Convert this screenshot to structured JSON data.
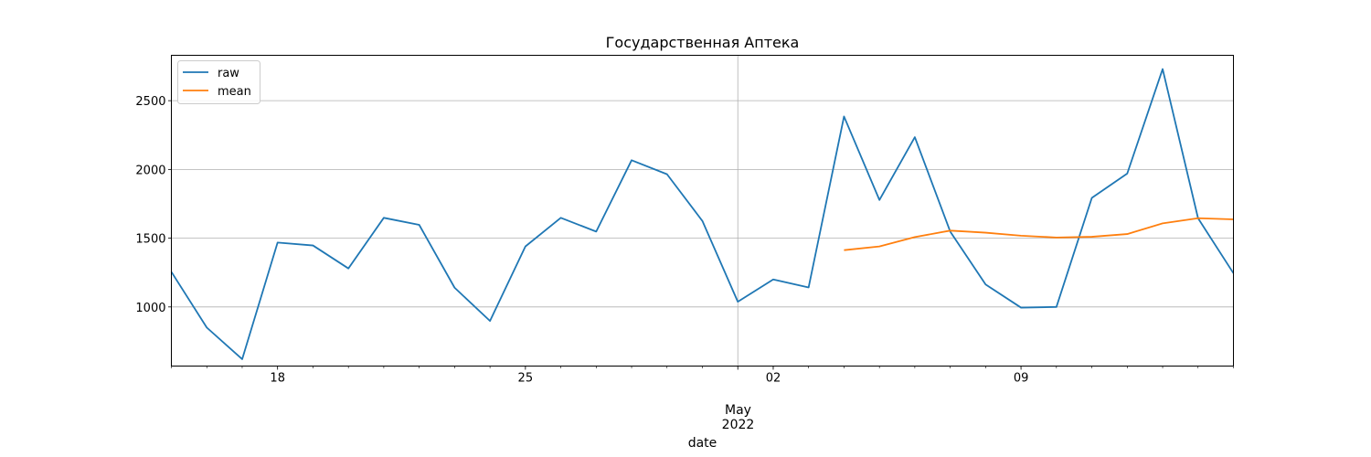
{
  "chart_data": {
    "type": "line",
    "title": "Государственная Аптека",
    "xlabel": "date",
    "ylabel": "",
    "x_month_label": "May",
    "x_year_label": "2022",
    "x_start": "2022-04-15",
    "x_end": "2022-05-15",
    "ylim": [
      570,
      2830
    ],
    "yticks": [
      1000,
      1500,
      2000,
      2500
    ],
    "xticks": [
      {
        "date": "2022-04-18",
        "label": "18"
      },
      {
        "date": "2022-04-25",
        "label": "25"
      },
      {
        "date": "2022-05-02",
        "label": "02"
      },
      {
        "date": "2022-05-09",
        "label": "09"
      }
    ],
    "grid": true,
    "legend_position": "upper-left",
    "series": [
      {
        "name": "raw",
        "color": "#1f77b4",
        "points": [
          [
            "2022-04-15",
            1255
          ],
          [
            "2022-04-16",
            850
          ],
          [
            "2022-04-17",
            620
          ],
          [
            "2022-04-18",
            1468
          ],
          [
            "2022-04-19",
            1447
          ],
          [
            "2022-04-20",
            1280
          ],
          [
            "2022-04-21",
            1648
          ],
          [
            "2022-04-22",
            1597
          ],
          [
            "2022-04-23",
            1140
          ],
          [
            "2022-04-24",
            898
          ],
          [
            "2022-04-25",
            1440
          ],
          [
            "2022-04-26",
            1648
          ],
          [
            "2022-04-27",
            1548
          ],
          [
            "2022-04-28",
            2067
          ],
          [
            "2022-04-29",
            1965
          ],
          [
            "2022-04-30",
            1625
          ],
          [
            "2022-05-01",
            1038
          ],
          [
            "2022-05-02",
            1200
          ],
          [
            "2022-05-03",
            1142
          ],
          [
            "2022-05-04",
            2385
          ],
          [
            "2022-05-05",
            1778
          ],
          [
            "2022-05-06",
            2235
          ],
          [
            "2022-05-07",
            1548
          ],
          [
            "2022-05-08",
            1163
          ],
          [
            "2022-05-09",
            995
          ],
          [
            "2022-05-10",
            1000
          ],
          [
            "2022-05-11",
            1793
          ],
          [
            "2022-05-12",
            1970
          ],
          [
            "2022-05-13",
            2730
          ],
          [
            "2022-05-14",
            1645
          ],
          [
            "2022-05-15",
            1245
          ]
        ]
      },
      {
        "name": "mean",
        "color": "#ff7f0e",
        "points": [
          [
            "2022-05-04",
            1413
          ],
          [
            "2022-05-05",
            1440
          ],
          [
            "2022-05-06",
            1508
          ],
          [
            "2022-05-07",
            1555
          ],
          [
            "2022-05-08",
            1540
          ],
          [
            "2022-05-09",
            1518
          ],
          [
            "2022-05-10",
            1505
          ],
          [
            "2022-05-11",
            1510
          ],
          [
            "2022-05-12",
            1530
          ],
          [
            "2022-05-13",
            1608
          ],
          [
            "2022-05-14",
            1645
          ],
          [
            "2022-05-15",
            1637
          ]
        ]
      }
    ]
  }
}
